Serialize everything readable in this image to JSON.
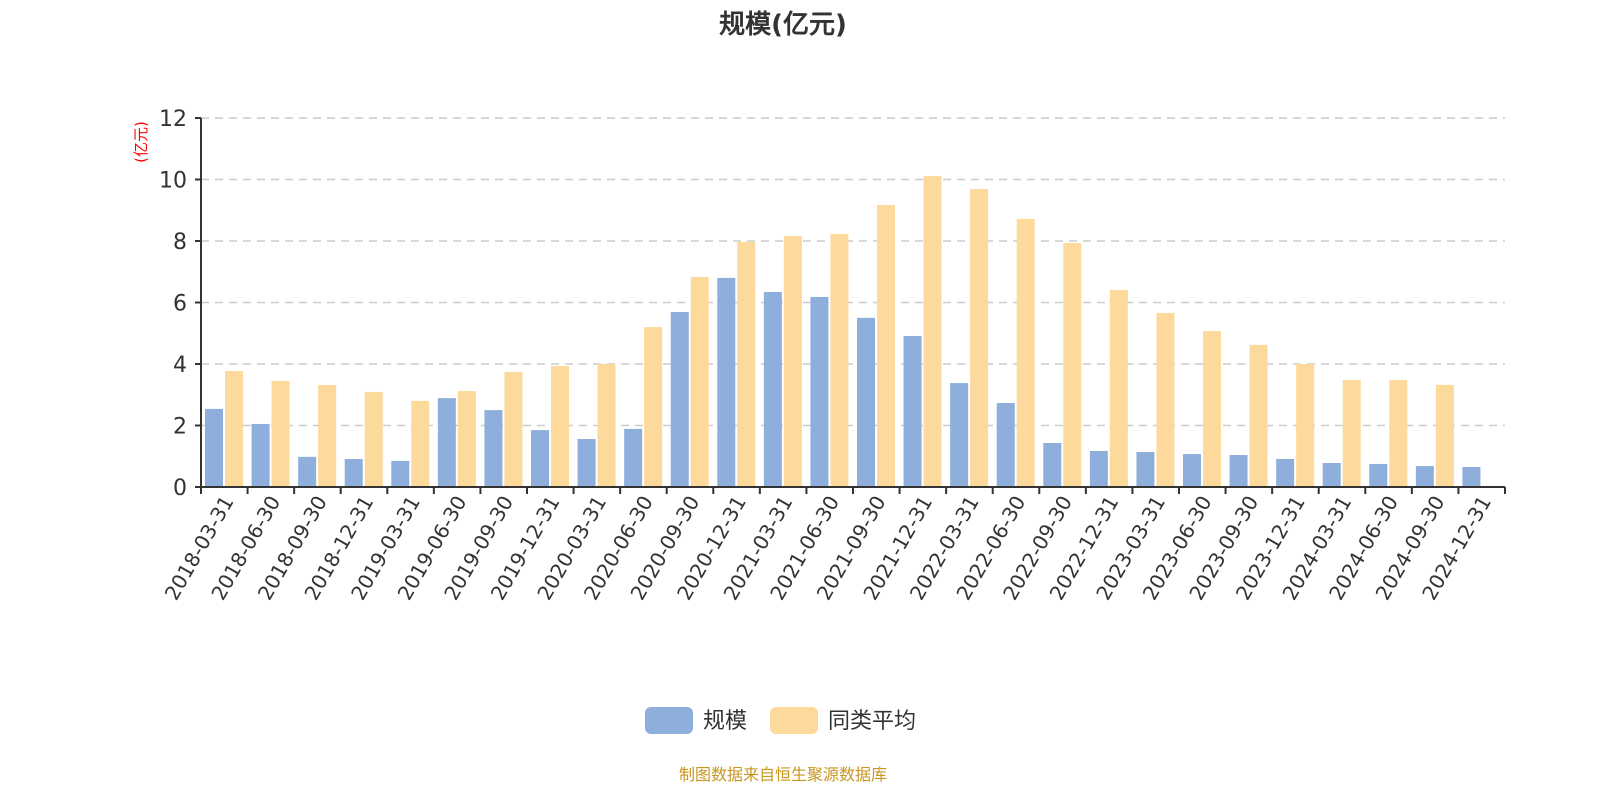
{
  "chart_data": {
    "type": "bar",
    "title": "规模(亿元)",
    "ylabel": "(亿元)",
    "xlabel": "",
    "ylim": [
      0,
      12
    ],
    "yticks": [
      0,
      2,
      4,
      6,
      8,
      10,
      12
    ],
    "grid": true,
    "legend_position": "bottom",
    "categories": [
      "2018-03-31",
      "2018-06-30",
      "2018-09-30",
      "2018-12-31",
      "2019-03-31",
      "2019-06-30",
      "2019-09-30",
      "2019-12-31",
      "2020-03-31",
      "2020-06-30",
      "2020-09-30",
      "2020-12-31",
      "2021-03-31",
      "2021-06-30",
      "2021-09-30",
      "2021-12-31",
      "2022-03-31",
      "2022-06-30",
      "2022-09-30",
      "2022-12-31",
      "2023-03-31",
      "2023-06-30",
      "2023-09-30",
      "2023-12-31",
      "2024-03-31",
      "2024-06-30",
      "2024-09-30",
      "2024-12-31"
    ],
    "series": [
      {
        "name": "规模",
        "color": "#8eaedb",
        "values": [
          2.54,
          2.05,
          0.98,
          0.91,
          0.85,
          2.89,
          2.5,
          1.85,
          1.56,
          1.89,
          5.69,
          6.8,
          6.34,
          6.18,
          5.5,
          4.91,
          3.38,
          2.73,
          1.43,
          1.17,
          1.14,
          1.07,
          1.04,
          0.91,
          0.78,
          0.75,
          0.68,
          0.65
        ]
      },
      {
        "name": "同类平均",
        "color": "#fdd99b",
        "values": [
          3.77,
          3.45,
          3.32,
          3.09,
          2.8,
          3.12,
          3.74,
          3.93,
          4.0,
          5.2,
          6.83,
          7.97,
          8.16,
          8.23,
          9.17,
          10.11,
          9.69,
          8.72,
          7.93,
          6.41,
          5.66,
          5.07,
          4.62,
          4.0,
          3.48,
          3.48,
          3.32,
          null
        ]
      }
    ],
    "source_note": "制图数据来自恒生聚源数据库"
  }
}
